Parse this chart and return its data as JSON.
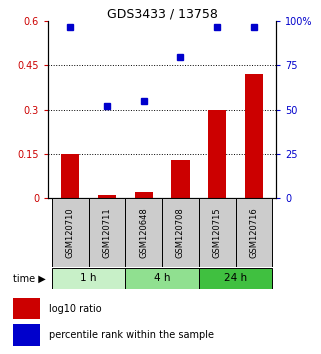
{
  "title": "GDS3433 / 13758",
  "samples": [
    "GSM120710",
    "GSM120711",
    "GSM120648",
    "GSM120708",
    "GSM120715",
    "GSM120716"
  ],
  "log10_ratio": [
    0.15,
    0.01,
    0.02,
    0.13,
    0.3,
    0.42
  ],
  "percentile_rank": [
    97,
    52,
    55,
    80,
    97,
    97
  ],
  "groups": [
    {
      "label": "1 h",
      "indices": [
        0,
        1
      ],
      "color": "#c8f0c8"
    },
    {
      "label": "4 h",
      "indices": [
        2,
        3
      ],
      "color": "#90e090"
    },
    {
      "label": "24 h",
      "indices": [
        4,
        5
      ],
      "color": "#40c040"
    }
  ],
  "bar_color": "#cc0000",
  "dot_color": "#0000cc",
  "left_axis_color": "#cc0000",
  "right_axis_color": "#0000cc",
  "ylim_left": [
    0,
    0.6
  ],
  "ylim_right": [
    0,
    100
  ],
  "yticks_left": [
    0,
    0.15,
    0.3,
    0.45,
    0.6
  ],
  "yticks_right": [
    0,
    25,
    50,
    75,
    100
  ],
  "ytick_labels_left": [
    "0",
    "0.15",
    "0.3",
    "0.45",
    "0.6"
  ],
  "ytick_labels_right": [
    "0",
    "25",
    "50",
    "75",
    "100%"
  ],
  "hlines": [
    0.15,
    0.3,
    0.45
  ],
  "time_label": "time",
  "legend_bar_label": "log10 ratio",
  "legend_dot_label": "percentile rank within the sample",
  "sample_box_color": "#cccccc",
  "bar_width": 0.5
}
